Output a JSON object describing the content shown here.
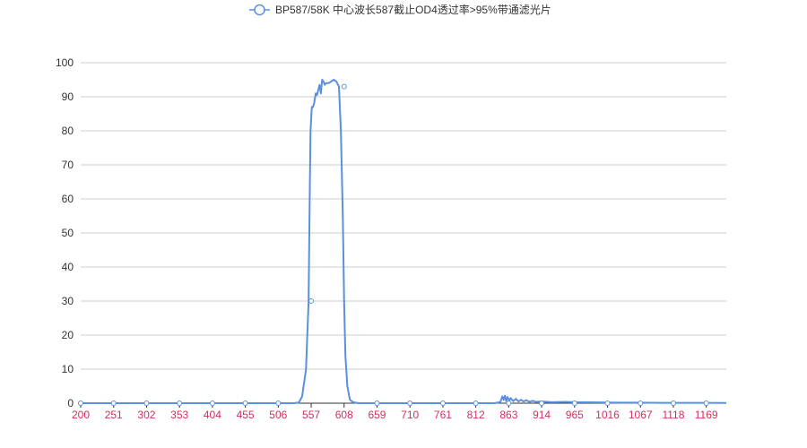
{
  "chart_data": {
    "type": "line",
    "series": [
      {
        "name": "BP587/58K 中心波长587截止OD4透过率>95%带通滤光片",
        "points": [
          [
            200,
            0
          ],
          [
            251,
            0
          ],
          [
            302,
            0
          ],
          [
            353,
            0
          ],
          [
            404,
            0
          ],
          [
            455,
            0
          ],
          [
            506,
            0
          ],
          [
            530,
            0
          ],
          [
            538,
            0.2
          ],
          [
            543,
            2
          ],
          [
            549,
            10
          ],
          [
            553,
            30
          ],
          [
            555,
            65
          ],
          [
            556,
            80
          ],
          [
            558,
            87
          ],
          [
            560,
            87
          ],
          [
            562,
            88.5
          ],
          [
            564,
            91
          ],
          [
            566,
            90.5
          ],
          [
            568,
            92
          ],
          [
            570,
            93.5
          ],
          [
            572,
            91
          ],
          [
            574,
            95
          ],
          [
            576,
            94.5
          ],
          [
            578,
            93.5
          ],
          [
            580,
            94
          ],
          [
            584,
            94
          ],
          [
            588,
            94.5
          ],
          [
            592,
            95
          ],
          [
            596,
            94.5
          ],
          [
            600,
            93
          ],
          [
            603,
            80
          ],
          [
            606,
            55
          ],
          [
            608,
            30
          ],
          [
            610,
            14
          ],
          [
            613,
            5
          ],
          [
            617,
            1
          ],
          [
            622,
            0.3
          ],
          [
            630,
            0
          ],
          [
            659,
            0
          ],
          [
            710,
            0
          ],
          [
            761,
            0
          ],
          [
            812,
            0
          ],
          [
            840,
            0
          ],
          [
            850,
            0.3
          ],
          [
            853,
            2
          ],
          [
            855,
            1
          ],
          [
            857,
            2.2
          ],
          [
            859,
            0.6
          ],
          [
            861,
            1.8
          ],
          [
            864,
            0.8
          ],
          [
            866,
            1.5
          ],
          [
            870,
            0.6
          ],
          [
            874,
            1.3
          ],
          [
            878,
            0.5
          ],
          [
            882,
            1.0
          ],
          [
            886,
            0.5
          ],
          [
            890,
            0.9
          ],
          [
            895,
            0.4
          ],
          [
            900,
            0.7
          ],
          [
            905,
            0.4
          ],
          [
            914,
            0.5
          ],
          [
            930,
            0.3
          ],
          [
            950,
            0.4
          ],
          [
            965,
            0.3
          ],
          [
            990,
            0.25
          ],
          [
            1016,
            0.2
          ],
          [
            1040,
            0.15
          ],
          [
            1067,
            0.15
          ],
          [
            1100,
            0.1
          ],
          [
            1118,
            0.1
          ],
          [
            1150,
            0.1
          ],
          [
            1169,
            0.1
          ],
          [
            1200,
            0.05
          ]
        ],
        "symbol_points": [
          [
            200,
            0
          ],
          [
            251,
            0
          ],
          [
            302,
            0
          ],
          [
            353,
            0
          ],
          [
            404,
            0
          ],
          [
            455,
            0
          ],
          [
            506,
            0
          ],
          [
            557,
            30
          ],
          [
            608,
            93
          ],
          [
            659,
            0
          ],
          [
            710,
            0
          ],
          [
            761,
            0
          ],
          [
            812,
            0
          ],
          [
            863,
            0
          ],
          [
            914,
            0
          ],
          [
            965,
            0
          ],
          [
            1016,
            0
          ],
          [
            1067,
            0
          ],
          [
            1118,
            0
          ],
          [
            1169,
            0
          ]
        ]
      }
    ],
    "x_ticks": [
      "200",
      "251",
      "302",
      "353",
      "404",
      "455",
      "506",
      "557",
      "608",
      "659",
      "710",
      "761",
      "812",
      "863",
      "914",
      "965",
      "1016",
      "1067",
      "1118",
      "1169"
    ],
    "y_ticks": [
      "0",
      "10",
      "20",
      "30",
      "40",
      "50",
      "60",
      "70",
      "80",
      "90",
      "100"
    ],
    "xlim": [
      200,
      1200
    ],
    "ylim": [
      0,
      100
    ],
    "title": "",
    "xlabel": "",
    "ylabel": "",
    "grid": "horizontal",
    "legend_position": "top-center",
    "colors": {
      "line": "#5b8fe0",
      "axis": "#333333",
      "x_tick_label": "#d0315b",
      "grid": "#cccccc",
      "symbol_fill": "#ffffff"
    }
  }
}
